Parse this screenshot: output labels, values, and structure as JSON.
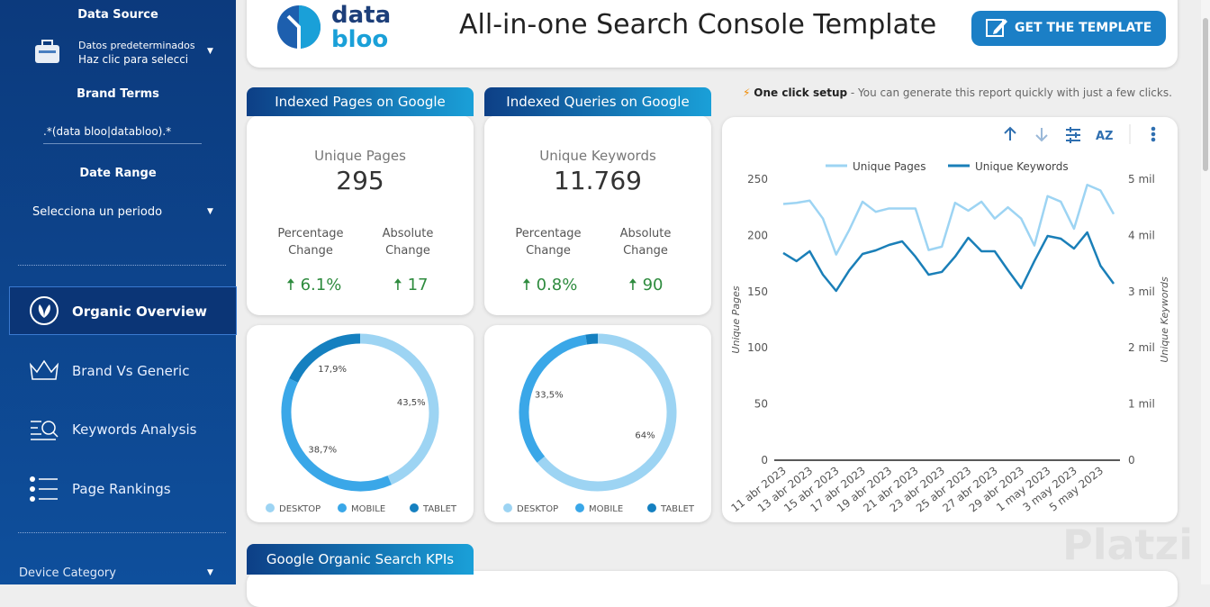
{
  "sidebar": {
    "data_source_title": "Data Source",
    "data_source_line1": "Datos predeterminados",
    "data_source_line2": "Haz clic para selecci",
    "brand_terms_title": "Brand Terms",
    "brand_terms_value": ".*(data bloo|databloo).*",
    "date_range_title": "Date Range",
    "date_range_value": "Selecciona un periodo",
    "nav": [
      "Organic Overview",
      "Brand Vs Generic",
      "Keywords Analysis",
      "Page Rankings"
    ],
    "device_category": "Device Category"
  },
  "header": {
    "logo_top": "data",
    "logo_bottom": "bloo",
    "title": "All-in-one Search Console Template",
    "button": "GET THE TEMPLATE"
  },
  "note": {
    "bold": "One click setup",
    "text": " - You can generate this report quickly with just a few clicks."
  },
  "cards": [
    {
      "tab": "Indexed Pages on Google",
      "metric": "Unique Pages",
      "value": "295",
      "pct_label": "Percentage Change",
      "abs_label": "Absolute Change",
      "pct": "6.1%",
      "abs": "17"
    },
    {
      "tab": "Indexed Queries on Google",
      "metric": "Unique Keywords",
      "value": "11.769",
      "pct_label": "Percentage Change",
      "abs_label": "Absolute Change",
      "pct": "0.8%",
      "abs": "90"
    }
  ],
  "section_tab": "Google Organic Search KPIs",
  "watermark": "Platzi",
  "chart_data": [
    {
      "type": "donut",
      "labels": [
        "DESKTOP",
        "MOBILE",
        "TABLET"
      ],
      "values": [
        43.5,
        38.7,
        17.9
      ],
      "value_labels": [
        "43,5%",
        "38,7%",
        "17,9%"
      ],
      "colors": [
        "#9dd4f3",
        "#3aa7e8",
        "#1580c0"
      ]
    },
    {
      "type": "donut",
      "labels": [
        "DESKTOP",
        "MOBILE",
        "TABLET"
      ],
      "values": [
        64,
        33.5,
        2.5
      ],
      "value_labels": [
        "64%",
        "33,5%",
        null
      ],
      "colors": [
        "#9dd4f3",
        "#3aa7e8",
        "#1580c0"
      ]
    },
    {
      "type": "line",
      "categories": [
        "11 abr 2023",
        null,
        "13 abr 2023",
        null,
        "15 abr 2023",
        null,
        "17 abr 2023",
        null,
        "19 abr 2023",
        null,
        "21 abr 2023",
        null,
        "23 abr 2023",
        null,
        "25 abr 2023",
        null,
        "27 abr 2023",
        null,
        "29 abr 2023",
        null,
        "1 may 2023",
        null,
        "3 may 2023",
        null,
        "5 may 2023",
        null
      ],
      "series": [
        {
          "name": "Unique Pages",
          "color": "#9dd4f3",
          "values": [
            228,
            229,
            231,
            215,
            183,
            205,
            230,
            221,
            224,
            224,
            224,
            187,
            190,
            229,
            222,
            230,
            215,
            225,
            215,
            191,
            235,
            230,
            206,
            245,
            240,
            219
          ]
        },
        {
          "name": "Unique Keywords",
          "color": "#1a7fb8",
          "axis": "y2",
          "values": [
            3686,
            3542,
            3718,
            3301,
            3013,
            3381,
            3670,
            3734,
            3830,
            3894,
            3622,
            3301,
            3350,
            3622,
            3958,
            3718,
            3718,
            3381,
            3061,
            3542,
            3990,
            3942,
            3766,
            4054,
            3462,
            3141
          ]
        }
      ],
      "ylabel": "Unique Pages",
      "y2label": "Unique Keywords",
      "ylim": [
        0,
        250
      ],
      "yticks": [
        0,
        50,
        100,
        150,
        200,
        250
      ],
      "y2lim": [
        0,
        5000
      ],
      "y2ticks": [
        0,
        {
          "value": 1000,
          "label": "1 mil"
        },
        {
          "value": 2000,
          "label": "2 mil"
        },
        {
          "value": 3000,
          "label": "3 mil"
        },
        {
          "value": 4000,
          "label": "4 mil"
        },
        {
          "value": 5000,
          "label": "5 mil"
        }
      ],
      "legend": "top"
    }
  ]
}
